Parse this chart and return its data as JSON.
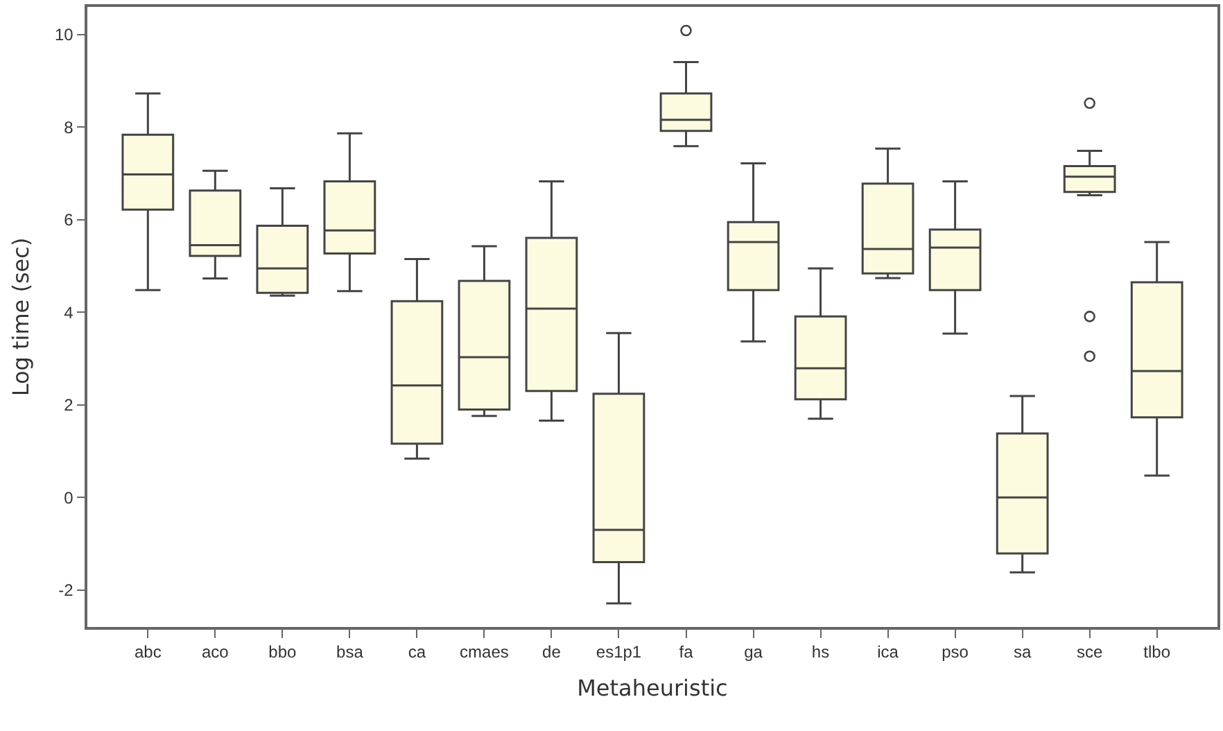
{
  "chart_data": {
    "type": "box",
    "xlabel": "Metaheuristic",
    "ylabel": "Log time (sec)",
    "categories": [
      "abc",
      "aco",
      "bbo",
      "bsa",
      "ca",
      "cmaes",
      "de",
      "es1p1",
      "fa",
      "ga",
      "hs",
      "ica",
      "pso",
      "sa",
      "sce",
      "tlbo"
    ],
    "ylim": [
      -2.8,
      10.6
    ],
    "yticks": [
      -2,
      0,
      2,
      4,
      6,
      8,
      10
    ],
    "grid": false,
    "series": [
      {
        "color": "#fcfbe0",
        "boxes": [
          {
            "low": 4.48,
            "q1": 6.22,
            "median": 6.98,
            "q3": 7.84,
            "high": 8.73
          },
          {
            "low": 4.73,
            "q1": 5.22,
            "median": 5.45,
            "q3": 6.63,
            "high": 7.06
          },
          {
            "low": 4.36,
            "q1": 4.42,
            "median": 4.95,
            "q3": 5.87,
            "high": 6.68
          },
          {
            "low": 4.46,
            "q1": 5.27,
            "median": 5.77,
            "q3": 6.83,
            "high": 7.87
          },
          {
            "low": 0.84,
            "q1": 1.16,
            "median": 2.42,
            "q3": 4.24,
            "high": 5.15
          },
          {
            "low": 1.76,
            "q1": 1.9,
            "median": 3.03,
            "q3": 4.68,
            "high": 5.43
          },
          {
            "low": 1.66,
            "q1": 2.3,
            "median": 4.08,
            "q3": 5.61,
            "high": 6.83
          },
          {
            "low": -2.29,
            "q1": -1.4,
            "median": -0.7,
            "q3": 2.24,
            "high": 3.55
          },
          {
            "low": 7.59,
            "q1": 7.92,
            "median": 8.16,
            "q3": 8.73,
            "high": 9.41,
            "outliers": [
              10.09
            ]
          },
          {
            "low": 3.37,
            "q1": 4.48,
            "median": 5.52,
            "q3": 5.95,
            "high": 7.22
          },
          {
            "low": 1.7,
            "q1": 2.12,
            "median": 2.79,
            "q3": 3.91,
            "high": 4.95
          },
          {
            "low": 4.74,
            "q1": 4.84,
            "median": 5.37,
            "q3": 6.78,
            "high": 7.54
          },
          {
            "low": 3.54,
            "q1": 4.48,
            "median": 5.4,
            "q3": 5.79,
            "high": 6.83
          },
          {
            "low": -1.62,
            "q1": -1.21,
            "median": 0.0,
            "q3": 1.38,
            "high": 2.19
          },
          {
            "low": 6.53,
            "q1": 6.6,
            "median": 6.93,
            "q3": 7.16,
            "high": 7.49,
            "outliers": [
              8.52,
              3.91,
              3.05
            ]
          },
          {
            "low": 0.47,
            "q1": 1.73,
            "median": 2.73,
            "q3": 4.65,
            "high": 5.52
          }
        ]
      }
    ]
  }
}
